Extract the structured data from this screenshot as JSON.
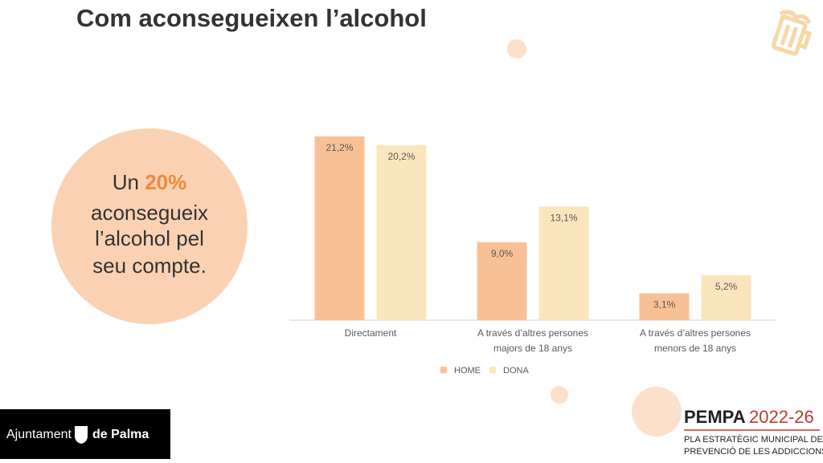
{
  "title": "Com aconsegueixen l’alcohol",
  "callout": {
    "prefix": "Un",
    "highlight": "20%",
    "lines": [
      "aconsegueix",
      "l’alcohol pel",
      "seu compte."
    ]
  },
  "chart_data": {
    "type": "bar",
    "categories": [
      [
        "Directament"
      ],
      [
        "A través d’altres persones",
        "majors de 18 anys"
      ],
      [
        "A través d’altres persones",
        "menors de 18 anys"
      ]
    ],
    "series": [
      {
        "name": "HOME",
        "color": "#f8c195",
        "values": [
          21.2,
          9.0,
          3.1
        ],
        "value_labels": [
          "21,2%",
          "9,0%",
          "3,1%"
        ]
      },
      {
        "name": "DONA",
        "color": "#fbe5bd",
        "values": [
          20.2,
          13.1,
          5.2
        ],
        "value_labels": [
          "20,2%",
          "13,1%",
          "5,2%"
        ]
      }
    ]
  },
  "logo_left": {
    "text": "Ajuntament",
    "bold": "de Palma"
  },
  "logo_right": {
    "name": "PEMPA",
    "years": "2022-26",
    "lines": [
      "PLA ESTRATÈGIC MUNICIPAL DE",
      "PREVENCIÓ DE LES ADDICCIONS"
    ]
  }
}
